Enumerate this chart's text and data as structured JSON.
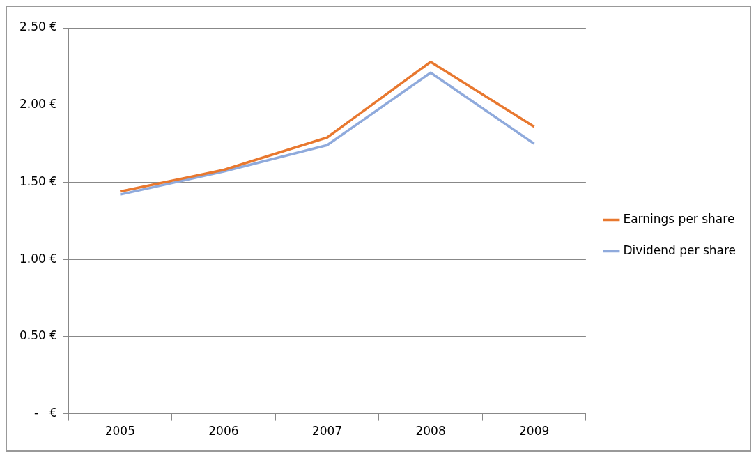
{
  "chart_data": {
    "type": "line",
    "categories": [
      "2005",
      "2006",
      "2007",
      "2008",
      "2009"
    ],
    "series": [
      {
        "name": "Earnings per share",
        "color": "#e8782f",
        "values": [
          1.44,
          1.58,
          1.79,
          2.28,
          1.86
        ]
      },
      {
        "name": "Dividend per share",
        "color": "#8faadc",
        "values": [
          1.42,
          1.57,
          1.74,
          2.21,
          1.75
        ]
      }
    ],
    "ylim": [
      0,
      2.5
    ],
    "yticks": [
      {
        "value": 0,
        "label": "-   €"
      },
      {
        "value": 0.5,
        "label": "0.50 €"
      },
      {
        "value": 1,
        "label": "1.00 €"
      },
      {
        "value": 1.5,
        "label": "1.50 €"
      },
      {
        "value": 2,
        "label": "2.00 €"
      },
      {
        "value": 2.5,
        "label": "2.50 €"
      }
    ],
    "grid": "y",
    "legend": "right",
    "marker": "none",
    "line_style": "solid"
  }
}
